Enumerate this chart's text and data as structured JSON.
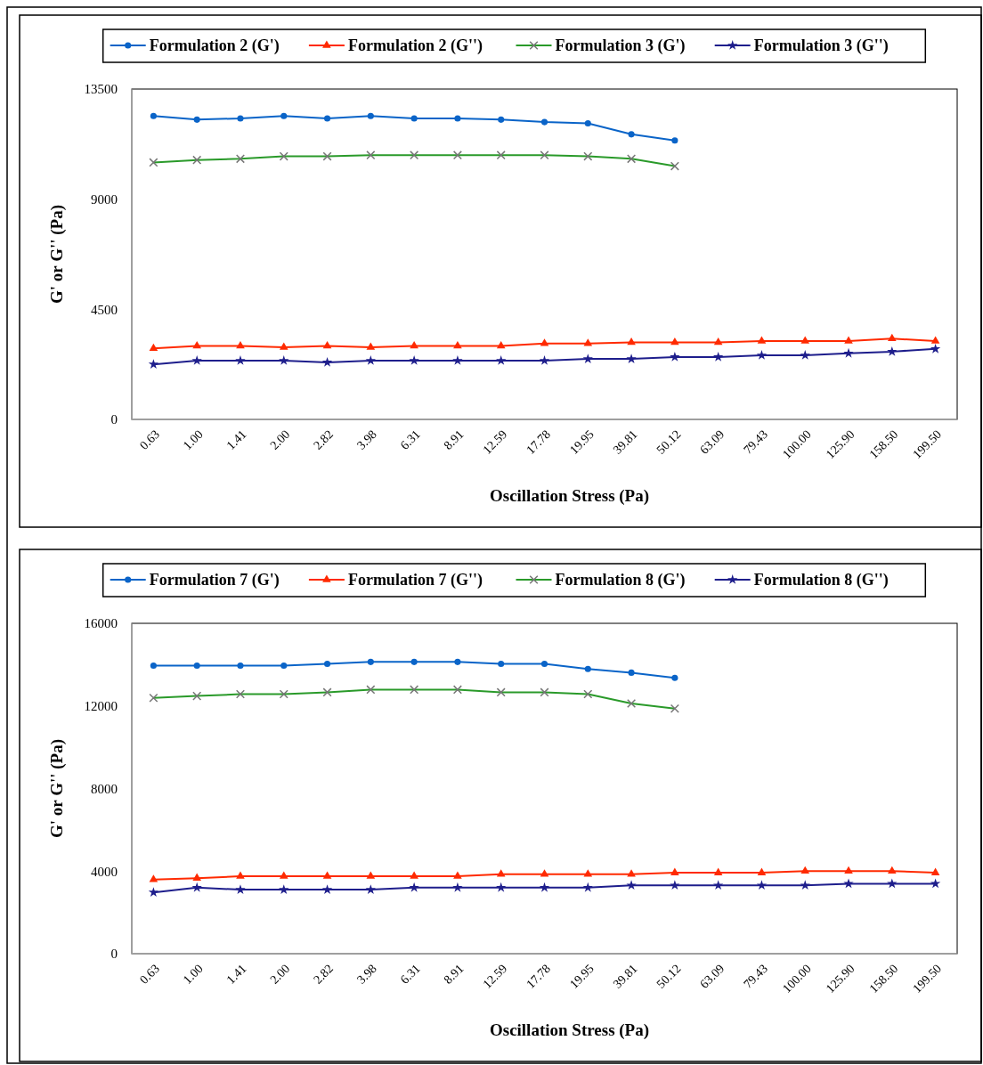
{
  "chart_data": [
    {
      "type": "line",
      "xlabel": "Oscillation Stress (Pa)",
      "ylabel": "G' or G'' (Pa)",
      "categories": [
        "0.63",
        "1.00",
        "1.41",
        "2.00",
        "2.82",
        "3.98",
        "6.31",
        "8.91",
        "12.59",
        "17.78",
        "19.95",
        "39.81",
        "50.12",
        "63.09",
        "79.43",
        "100.00",
        "125.90",
        "158.50",
        "199.50"
      ],
      "ylim": [
        0,
        13500
      ],
      "yticks": [
        0,
        4500,
        9000,
        13500
      ],
      "grid": false,
      "legend": "top",
      "series": [
        {
          "name": "Formulation 2 (G')",
          "color": "#0a64c8",
          "marker": "circle",
          "values": [
            12400,
            12250,
            12300,
            12400,
            12300,
            12400,
            12300,
            12300,
            12250,
            12150,
            12100,
            11650,
            11400,
            null,
            null,
            null,
            null,
            null,
            null
          ]
        },
        {
          "name": "Formulation 2 (G'')",
          "color": "#ff2a00",
          "marker": "triangle",
          "values": [
            2900,
            3000,
            3000,
            2950,
            3000,
            2950,
            3000,
            3000,
            3000,
            3100,
            3100,
            3150,
            3150,
            3150,
            3200,
            3200,
            3200,
            3300,
            3200
          ]
        },
        {
          "name": "Formulation 3 (G')",
          "color": "#2a9a2a",
          "marker": "cross",
          "values": [
            10500,
            10600,
            10650,
            10750,
            10750,
            10800,
            10800,
            10800,
            10800,
            10800,
            10750,
            10650,
            10350,
            null,
            null,
            null,
            null,
            null,
            null
          ]
        },
        {
          "name": "Formulation 3 (G'')",
          "color": "#1e1e8c",
          "marker": "star",
          "values": [
            2250,
            2400,
            2400,
            2400,
            2330,
            2400,
            2400,
            2400,
            2400,
            2400,
            2470,
            2470,
            2550,
            2550,
            2620,
            2620,
            2700,
            2770,
            2880
          ]
        }
      ]
    },
    {
      "type": "line",
      "xlabel": "Oscillation Stress (Pa)",
      "ylabel": "G' or G'' (Pa)",
      "categories": [
        "0.63",
        "1.00",
        "1.41",
        "2.00",
        "2.82",
        "3.98",
        "6.31",
        "8.91",
        "12.59",
        "17.78",
        "19.95",
        "39.81",
        "50.12",
        "63.09",
        "79.43",
        "100.00",
        "125.90",
        "158.50",
        "199.50"
      ],
      "ylim": [
        0,
        16000
      ],
      "yticks": [
        0,
        4000,
        8000,
        12000,
        16000
      ],
      "grid": false,
      "legend": "top",
      "series": [
        {
          "name": "Formulation 7 (G')",
          "color": "#0a64c8",
          "marker": "circle",
          "values": [
            13950,
            13950,
            13950,
            13950,
            14040,
            14130,
            14130,
            14130,
            14040,
            14040,
            13790,
            13610,
            13360,
            null,
            null,
            null,
            null,
            null,
            null
          ]
        },
        {
          "name": "Formulation 7 (G'')",
          "color": "#ff2a00",
          "marker": "triangle",
          "values": [
            3590,
            3660,
            3750,
            3750,
            3750,
            3750,
            3750,
            3750,
            3850,
            3850,
            3850,
            3850,
            3920,
            3920,
            3920,
            4000,
            4000,
            4000,
            3920
          ]
        },
        {
          "name": "Formulation 8 (G')",
          "color": "#2a9a2a",
          "marker": "cross",
          "values": [
            12390,
            12480,
            12570,
            12570,
            12660,
            12790,
            12790,
            12790,
            12660,
            12660,
            12570,
            12120,
            11870,
            null,
            null,
            null,
            null,
            null,
            null
          ]
        },
        {
          "name": "Formulation 8 (G'')",
          "color": "#1e1e8c",
          "marker": "star",
          "values": [
            2970,
            3200,
            3100,
            3100,
            3100,
            3100,
            3200,
            3200,
            3200,
            3200,
            3200,
            3310,
            3310,
            3310,
            3310,
            3310,
            3390,
            3390,
            3390
          ]
        }
      ]
    }
  ]
}
